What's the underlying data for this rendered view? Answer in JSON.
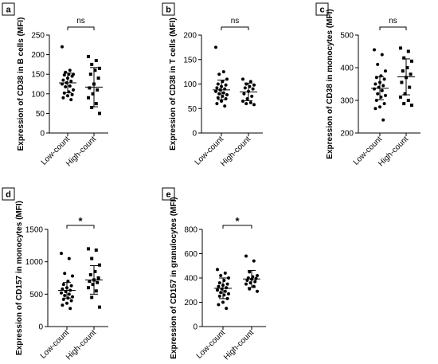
{
  "chart_data": [
    {
      "panel": "a",
      "type": "scatter",
      "ylabel": "Expression of CD38 in B cells (MFI)",
      "categories": [
        "Low-count",
        "High-count"
      ],
      "ylim": [
        0,
        250
      ],
      "yticks": [
        0,
        50,
        100,
        150,
        200,
        250
      ],
      "significance": "ns",
      "series": [
        {
          "values": [
            220,
            160,
            155,
            150,
            150,
            148,
            145,
            140,
            135,
            132,
            128,
            125,
            120,
            118,
            110,
            105,
            102,
            98,
            95,
            90,
            85
          ],
          "mean": 128,
          "sd": 25
        },
        {
          "values": [
            195,
            185,
            175,
            165,
            160,
            150,
            140,
            125,
            115,
            110,
            100,
            90,
            75,
            65,
            50
          ],
          "mean": 117,
          "sd": 50
        }
      ]
    },
    {
      "panel": "b",
      "type": "scatter",
      "ylabel": "Expression of CD38 in T cells (MFI)",
      "categories": [
        "Low-count",
        "High-count"
      ],
      "ylim": [
        0,
        200
      ],
      "yticks": [
        0,
        50,
        100,
        150,
        200
      ],
      "significance": "ns",
      "series": [
        {
          "values": [
            175,
            125,
            120,
            110,
            105,
            100,
            98,
            95,
            92,
            90,
            88,
            85,
            82,
            80,
            78,
            75,
            72,
            70,
            65,
            60,
            55
          ],
          "mean": 88,
          "sd": 20
        },
        {
          "values": [
            110,
            105,
            100,
            98,
            95,
            92,
            90,
            85,
            80,
            75,
            70,
            65,
            62,
            60,
            58
          ],
          "mean": 84,
          "sd": 18
        }
      ]
    },
    {
      "panel": "c",
      "type": "scatter",
      "ylabel": "Expression of CD38 in monocytes (MFI)",
      "categories": [
        "Low-count",
        "High-count"
      ],
      "ylim": [
        200,
        500
      ],
      "yticks": [
        200,
        300,
        400,
        500
      ],
      "significance": "ns",
      "series": [
        {
          "values": [
            455,
            440,
            410,
            390,
            375,
            370,
            365,
            355,
            350,
            345,
            340,
            335,
            330,
            320,
            315,
            310,
            300,
            290,
            280,
            275,
            240
          ],
          "mean": 337,
          "sd": 35
        },
        {
          "values": [
            460,
            450,
            430,
            420,
            400,
            390,
            380,
            370,
            355,
            340,
            320,
            310,
            300,
            290,
            285
          ],
          "mean": 372,
          "sd": 55
        }
      ]
    },
    {
      "panel": "d",
      "type": "scatter",
      "ylabel": "Expression of CD157 in monocytes (MFI)",
      "categories": [
        "Low-count",
        "High-count"
      ],
      "ylim": [
        0,
        1500
      ],
      "yticks": [
        0,
        500,
        1000,
        1500
      ],
      "significance": "*",
      "series": [
        {
          "values": [
            1130,
            1050,
            820,
            780,
            700,
            650,
            630,
            600,
            580,
            560,
            540,
            520,
            500,
            480,
            460,
            440,
            420,
            400,
            360,
            330,
            280
          ],
          "mean": 560,
          "sd": 120
        },
        {
          "values": [
            1200,
            1180,
            1050,
            950,
            850,
            800,
            750,
            720,
            700,
            680,
            650,
            600,
            550,
            450,
            300
          ],
          "mean": 720,
          "sd": 220
        }
      ]
    },
    {
      "panel": "e",
      "type": "scatter",
      "ylabel": "Expression of CD157 in granulocytes (MFI)",
      "categories": [
        "Low-count",
        "High-count"
      ],
      "ylim": [
        0,
        800
      ],
      "yticks": [
        0,
        200,
        400,
        600,
        800
      ],
      "significance": "*",
      "series": [
        {
          "values": [
            470,
            440,
            420,
            400,
            380,
            360,
            350,
            340,
            330,
            320,
            310,
            300,
            290,
            280,
            270,
            260,
            250,
            230,
            200,
            180,
            150
          ],
          "mean": 315,
          "sd": 85
        },
        {
          "values": [
            580,
            540,
            450,
            420,
            410,
            400,
            395,
            390,
            380,
            370,
            360,
            350,
            330,
            310,
            290
          ],
          "mean": 392,
          "sd": 70
        }
      ]
    }
  ]
}
